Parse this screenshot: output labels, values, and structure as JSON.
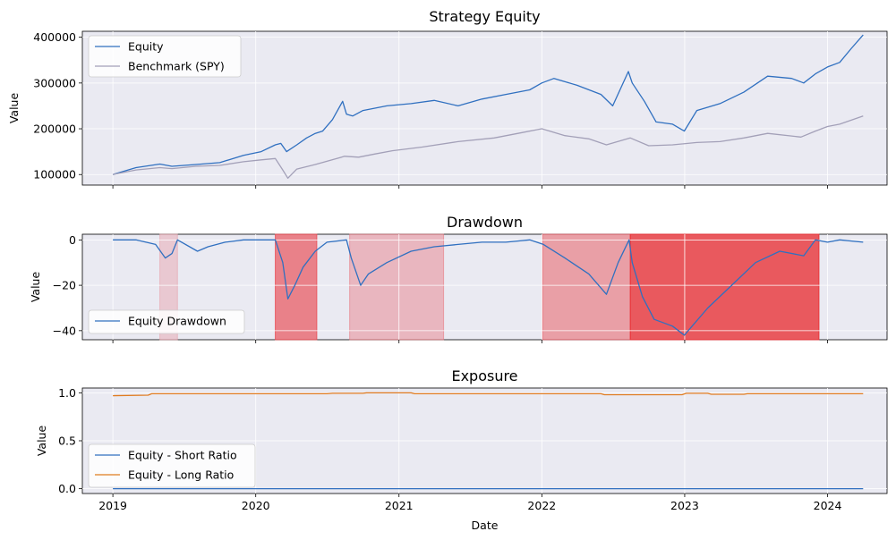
{
  "chart_data": [
    {
      "type": "line",
      "title": "Strategy Equity",
      "xlabel": "",
      "ylabel": "Value",
      "xlim": [
        "2018-10-15",
        "2024-06-01"
      ],
      "ylim": [
        77000,
        413000
      ],
      "yticks": [
        100000,
        200000,
        300000,
        400000
      ],
      "ytick_labels": [
        "100000",
        "200000",
        "300000",
        "400000"
      ],
      "grid": true,
      "legend": "upper left",
      "series": [
        {
          "name": "Equity",
          "color": "#3070c0",
          "x": [
            "2019-01-01",
            "2019-03-01",
            "2019-05-01",
            "2019-06-01",
            "2019-08-01",
            "2019-10-01",
            "2019-12-01",
            "2020-01-15",
            "2020-02-20",
            "2020-03-05",
            "2020-03-20",
            "2020-04-15",
            "2020-05-10",
            "2020-06-01",
            "2020-06-20",
            "2020-07-15",
            "2020-08-10",
            "2020-08-20",
            "2020-09-05",
            "2020-10-01",
            "2020-12-01",
            "2021-02-01",
            "2021-04-01",
            "2021-06-01",
            "2021-08-01",
            "2021-10-01",
            "2021-12-01",
            "2022-01-01",
            "2022-02-01",
            "2022-04-01",
            "2022-06-01",
            "2022-07-01",
            "2022-08-10",
            "2022-08-20",
            "2022-09-20",
            "2022-10-20",
            "2022-12-01",
            "2022-12-31",
            "2023-02-01",
            "2023-04-01",
            "2023-06-01",
            "2023-08-01",
            "2023-10-01",
            "2023-11-01",
            "2023-12-01",
            "2024-01-01",
            "2024-02-01",
            "2024-03-01",
            "2024-04-01"
          ],
          "y": [
            100000,
            115000,
            123000,
            118000,
            122000,
            126000,
            142000,
            150000,
            165000,
            168000,
            150000,
            165000,
            180000,
            190000,
            195000,
            220000,
            260000,
            232000,
            228000,
            240000,
            250000,
            255000,
            262000,
            250000,
            265000,
            275000,
            285000,
            300000,
            310000,
            295000,
            275000,
            250000,
            325000,
            300000,
            260000,
            215000,
            210000,
            195000,
            240000,
            255000,
            280000,
            315000,
            310000,
            300000,
            320000,
            335000,
            345000,
            375000,
            405000
          ]
        },
        {
          "name": "Benchmark (SPY)",
          "color": "#a3a0b8",
          "x": [
            "2019-01-01",
            "2019-03-01",
            "2019-05-01",
            "2019-06-01",
            "2019-08-01",
            "2019-10-01",
            "2019-12-01",
            "2020-01-15",
            "2020-02-20",
            "2020-03-10",
            "2020-03-23",
            "2020-04-15",
            "2020-06-01",
            "2020-08-15",
            "2020-09-20",
            "2020-11-01",
            "2020-12-15",
            "2021-03-01",
            "2021-06-01",
            "2021-09-01",
            "2021-11-01",
            "2022-01-01",
            "2022-03-01",
            "2022-05-01",
            "2022-06-15",
            "2022-08-15",
            "2022-10-01",
            "2022-12-01",
            "2023-02-01",
            "2023-04-01",
            "2023-06-01",
            "2023-08-01",
            "2023-10-25",
            "2023-12-01",
            "2024-01-01",
            "2024-02-01",
            "2024-04-01"
          ],
          "y": [
            100000,
            110000,
            115000,
            113000,
            118000,
            120000,
            128000,
            132000,
            135000,
            110000,
            92000,
            112000,
            122000,
            140000,
            138000,
            145000,
            152000,
            160000,
            172000,
            180000,
            190000,
            200000,
            185000,
            178000,
            165000,
            180000,
            163000,
            165000,
            170000,
            172000,
            180000,
            190000,
            182000,
            195000,
            205000,
            210000,
            228000
          ]
        }
      ]
    },
    {
      "type": "line",
      "title": "Drawdown",
      "xlabel": "",
      "ylabel": "Value",
      "xlim": [
        "2018-10-15",
        "2024-06-01"
      ],
      "ylim": [
        -44,
        2.5
      ],
      "yticks": [
        -40,
        -20,
        0
      ],
      "ytick_labels": [
        "−40",
        "−20",
        "0"
      ],
      "grid": true,
      "legend": "lower left",
      "series": [
        {
          "name": "Equity Drawdown",
          "color": "#3070c0",
          "x": [
            "2019-01-01",
            "2019-03-01",
            "2019-04-20",
            "2019-05-15",
            "2019-06-01",
            "2019-06-15",
            "2019-08-05",
            "2019-09-01",
            "2019-10-15",
            "2019-12-01",
            "2020-02-20",
            "2020-03-10",
            "2020-03-23",
            "2020-04-10",
            "2020-05-01",
            "2020-06-01",
            "2020-07-01",
            "2020-08-20",
            "2020-09-01",
            "2020-09-25",
            "2020-10-15",
            "2020-12-01",
            "2021-02-01",
            "2021-04-01",
            "2021-06-01",
            "2021-08-01",
            "2021-10-01",
            "2021-12-01",
            "2022-01-05",
            "2022-03-01",
            "2022-05-01",
            "2022-06-15",
            "2022-07-15",
            "2022-08-12",
            "2022-08-20",
            "2022-09-15",
            "2022-10-15",
            "2022-12-01",
            "2022-12-31",
            "2023-03-01",
            "2023-05-01",
            "2023-07-01",
            "2023-09-01",
            "2023-11-01",
            "2023-12-01",
            "2024-01-01",
            "2024-02-01",
            "2024-04-01"
          ],
          "y": [
            0,
            0,
            -2,
            -8,
            -6,
            0,
            -5,
            -3,
            -1,
            0,
            0,
            -10,
            -26,
            -20,
            -12,
            -5,
            -1,
            0,
            -8,
            -20,
            -15,
            -10,
            -5,
            -3,
            -2,
            -1,
            -1,
            0,
            -2,
            -8,
            -15,
            -24,
            -10,
            0,
            -10,
            -25,
            -35,
            -38,
            -42,
            -30,
            -20,
            -10,
            -5,
            -7,
            0,
            -1,
            0,
            -1
          ]
        }
      ],
      "shaded_regions": [
        {
          "start": "2019-05-01",
          "end": "2019-06-15",
          "color": "#e8a0a8",
          "opacity": 0.45
        },
        {
          "start": "2020-02-20",
          "end": "2020-06-05",
          "color": "#e84850",
          "opacity": 0.65
        },
        {
          "start": "2020-08-28",
          "end": "2021-04-25",
          "color": "#e87880",
          "opacity": 0.45
        },
        {
          "start": "2022-01-03",
          "end": "2022-08-15",
          "color": "#e86068",
          "opacity": 0.55
        },
        {
          "start": "2022-08-15",
          "end": "2023-12-10",
          "color": "#e83035",
          "opacity": 0.78
        }
      ]
    },
    {
      "type": "line",
      "title": "Exposure",
      "xlabel": "Date",
      "ylabel": "Value",
      "xlim": [
        "2018-10-15",
        "2024-06-01"
      ],
      "ylim": [
        -0.05,
        1.05
      ],
      "yticks": [
        0.0,
        0.5,
        1.0
      ],
      "ytick_labels": [
        "0.0",
        "0.5",
        "1.0"
      ],
      "xticks": [
        "2019-01-01",
        "2020-01-01",
        "2021-01-01",
        "2022-01-01",
        "2023-01-01",
        "2024-01-01"
      ],
      "xtick_labels": [
        "2019",
        "2020",
        "2021",
        "2022",
        "2023",
        "2024"
      ],
      "grid": true,
      "legend": "lower left",
      "series": [
        {
          "name": "Equity - Short Ratio",
          "color": "#3070c0",
          "x": [
            "2019-01-01",
            "2024-04-01"
          ],
          "y": [
            0.0,
            0.0
          ]
        },
        {
          "name": "Equity - Long Ratio",
          "color": "#e07b20",
          "x": [
            "2019-01-01",
            "2019-04-01",
            "2019-04-10",
            "2020-07-01",
            "2020-07-15",
            "2020-10-01",
            "2020-10-10",
            "2021-02-01",
            "2021-02-10",
            "2022-06-01",
            "2022-06-10",
            "2022-12-25",
            "2023-01-05",
            "2023-03-01",
            "2023-03-10",
            "2023-06-01",
            "2023-06-10",
            "2024-04-01"
          ],
          "y": [
            0.97,
            0.975,
            0.99,
            0.99,
            0.995,
            0.995,
            1.0,
            1.0,
            0.99,
            0.99,
            0.98,
            0.98,
            0.995,
            0.995,
            0.985,
            0.985,
            0.99,
            0.99
          ]
        }
      ]
    }
  ]
}
